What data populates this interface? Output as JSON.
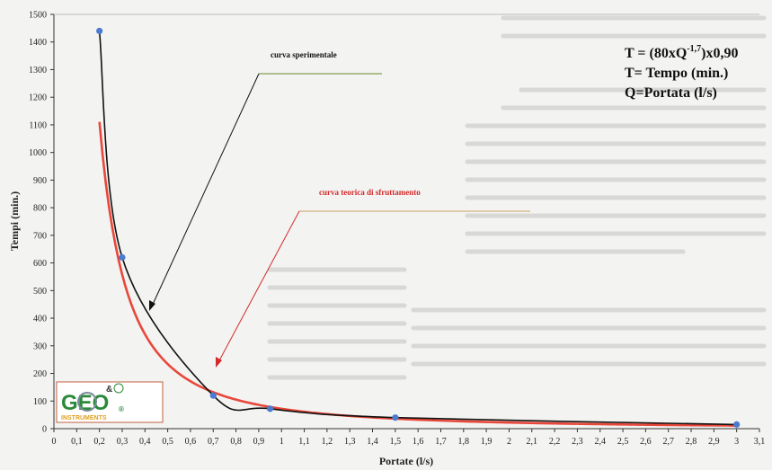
{
  "chart_data": {
    "type": "line",
    "xlabel": "Portate (l/s)",
    "ylabel": "Tempi (min.)",
    "xlim": [
      0,
      3.1
    ],
    "ylim": [
      0,
      1500
    ],
    "x_ticks": [
      "0",
      "0,1",
      "0,2",
      "0,3",
      "0,4",
      "0,5",
      "0,6",
      "0,7",
      "0,8",
      "0,9",
      "1",
      "1,1",
      "1,2",
      "1,3",
      "1,4",
      "1,5",
      "1,6",
      "1,7",
      "1,8",
      "1,9",
      "2",
      "2,1",
      "2,2",
      "2,3",
      "2,4",
      "2,5",
      "2,6",
      "2,7",
      "2,8",
      "2,9",
      "3",
      "3,1"
    ],
    "y_ticks": [
      0,
      100,
      200,
      300,
      400,
      500,
      600,
      700,
      800,
      900,
      1000,
      1100,
      1200,
      1300,
      1400,
      1500
    ],
    "series": [
      {
        "name": "curva sperimentale",
        "color": "#111111",
        "marker_color": "#4a7bd0",
        "points": [
          [
            0.2,
            1440
          ],
          [
            0.3,
            620
          ],
          [
            0.7,
            120
          ],
          [
            0.95,
            72
          ],
          [
            1.5,
            40
          ],
          [
            3.0,
            15
          ]
        ]
      },
      {
        "name": "curva teorica di sfruttamento",
        "color": "#e8473a",
        "formula": "T = (80xQ^-1,7)x0,90",
        "x_start": 0.2,
        "x_end": 3.0
      }
    ],
    "annotations": {
      "black_label": "curva sperimentale",
      "red_label": "curva teorica di sfruttamento"
    },
    "formula_box": {
      "line1_main": "T = (80xQ",
      "line1_exp": "-1,7",
      "line1_tail": ")x0,90",
      "line2": "T= Tempo (min.)",
      "line3": "Q=Portata (l/s)"
    },
    "grid": false
  },
  "logo": {
    "text": "GEO",
    "sub": "INSTRUMENTS",
    "badge": "&",
    "mark": "®"
  }
}
